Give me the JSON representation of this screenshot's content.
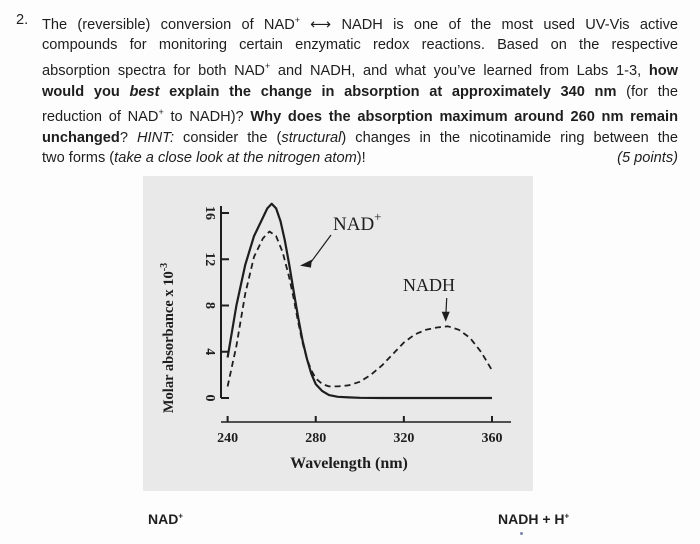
{
  "question": {
    "number": "2.",
    "line1_a": "The (reversible) conversion of NAD",
    "line1_sup1": "+",
    "line1_arrow": "⟷",
    "line1_b": "NADH is one of the most used UV-Vis active",
    "line2": "compounds for monitoring certain enzymatic redox reactions.  Based on the respective",
    "line3_a": "absorption spectra for both NAD",
    "line3_sup": "+",
    "line3_b": " and NADH, and what you’ve learned from Labs 1-3, ",
    "line3_bold": "how",
    "line4_bold_a": "would you ",
    "line4_bold_italic": "best",
    "line4_bold_b": " explain the change in absorption at approximately 340 nm",
    "line4_c": " (for the",
    "line5_a": "reduction of NAD",
    "line5_sup": "+",
    "line5_b": " to NADH)? ",
    "line5_bold": "Why does the absorption maximum around 260 nm remain",
    "line6_bold": "unchanged",
    "line6_a": "? ",
    "line6_italic_hint": "HINT:",
    "line6_b": " consider the (",
    "line6_italic_structural": "structural",
    "line6_c": ") changes in the nicotinamide ring between the",
    "line7_a": "two forms (",
    "line7_italic": "take a close look at the nitrogen atom",
    "line7_b": ")!",
    "points": "(5 points)"
  },
  "chart_data": {
    "type": "line",
    "title": "",
    "xlabel": "Wavelength (nm)",
    "ylabel": "Molar absorbance x 10",
    "ylabel_exponent": "-3",
    "xlim": [
      237,
      365
    ],
    "ylim": [
      0,
      16
    ],
    "xticks": [
      240,
      280,
      320,
      360
    ],
    "yticks": [
      0,
      4,
      8,
      12,
      16
    ],
    "grid": false,
    "series": [
      {
        "name": "NAD+",
        "style": "solid",
        "x": [
          240,
          244,
          248,
          252,
          256,
          258,
          260,
          262,
          264,
          266,
          268,
          270,
          272,
          274,
          276,
          278,
          280,
          283,
          286,
          290,
          295,
          300,
          310,
          320,
          330,
          340,
          350,
          360
        ],
        "y": [
          3.5,
          8.0,
          11.5,
          14.0,
          15.6,
          16.4,
          16.8,
          16.4,
          15.3,
          13.6,
          11.5,
          9.2,
          7.0,
          5.0,
          3.4,
          2.1,
          1.2,
          0.6,
          0.25,
          0.1,
          0.05,
          0.02,
          0.0,
          0.0,
          0.0,
          0.0,
          0.0,
          0.0
        ]
      },
      {
        "name": "NADH",
        "style": "dashed",
        "x": [
          240,
          244,
          248,
          252,
          256,
          259,
          262,
          265,
          268,
          270,
          272,
          274,
          276,
          278,
          280,
          283,
          286,
          290,
          295,
          300,
          305,
          310,
          315,
          320,
          325,
          330,
          335,
          340,
          345,
          350,
          355,
          360
        ],
        "y": [
          1.0,
          4.5,
          9.0,
          12.2,
          13.8,
          14.4,
          14.0,
          12.6,
          10.4,
          8.6,
          6.6,
          4.8,
          3.4,
          2.4,
          1.7,
          1.2,
          1.0,
          1.0,
          1.1,
          1.4,
          2.0,
          2.8,
          3.8,
          4.8,
          5.5,
          5.9,
          6.1,
          6.2,
          5.9,
          5.2,
          4.0,
          2.4
        ]
      }
    ],
    "annotations": [
      {
        "text": "NAD",
        "sup": "+"
      },
      {
        "text": "NADH"
      }
    ]
  },
  "reaction": {
    "reactant": "NAD",
    "reactant_sup": "+",
    "product": "NADH + H",
    "product_sup": "+"
  }
}
